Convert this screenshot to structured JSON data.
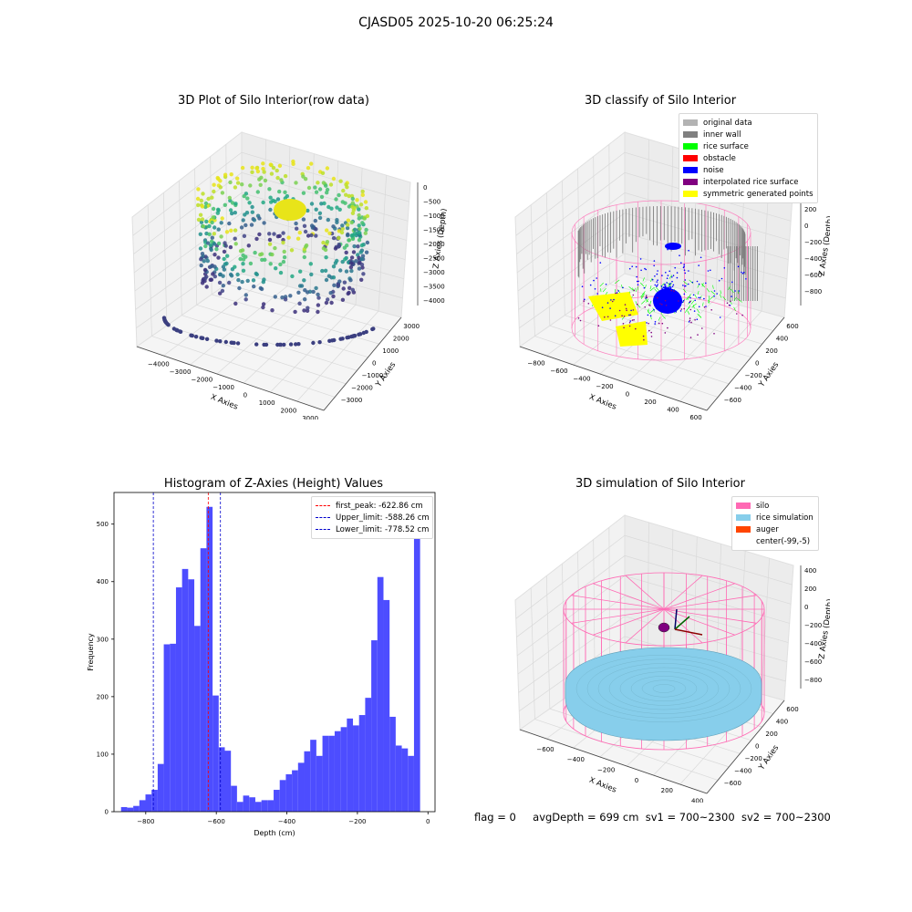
{
  "suptitle": "CJASD05 2025-10-20 06:25:24",
  "status": {
    "flag": "flag = 0",
    "avg_depth": "avgDepth = 699 cm",
    "sv1": "sv1 = 700~2300",
    "sv2": "sv2 = 700~2300"
  },
  "colors": {
    "original_data": "#b3b3b3",
    "inner_wall": "#808080",
    "rice_surface": "#00ff00",
    "obstacle": "#ff0000",
    "noise": "#0000ff",
    "interpolated": "#800080",
    "symmetric": "#ffff00",
    "silo": "#ff69b4",
    "rice_sim": "#87ceeb",
    "auger": "#ff4500",
    "hist_bar": "#4d4dff"
  },
  "panels": [
    {
      "title": "3D Plot of Silo Interior(row data)",
      "xlabel": "X Axies",
      "ylabel": "Y Axies",
      "zlabel": "Z Axies (Depth)",
      "xticks": [
        "−4000",
        "−3000",
        "−2000",
        "−1000",
        "0",
        "1000",
        "2000",
        "3000"
      ],
      "yticks": [
        "−3000",
        "−2000",
        "−1000",
        "0",
        "1000",
        "2000",
        "3000"
      ],
      "zticks": [
        "0",
        "−500",
        "−1000",
        "−1500",
        "−2000",
        "−2500",
        "−3000",
        "−3500",
        "−4000"
      ]
    },
    {
      "title": "3D classify of Silo Interior",
      "xlabel": "X Axies",
      "ylabel": "Y Axies",
      "zlabel": "Z Axies (Depth)",
      "xticks": [
        "−800",
        "−600",
        "−400",
        "−200",
        "0",
        "200",
        "400",
        "600"
      ],
      "yticks": [
        "−600",
        "−400",
        "−200",
        "0",
        "200",
        "400",
        "600"
      ],
      "zticks": [
        "200",
        "0",
        "−200",
        "−400",
        "−600",
        "−800"
      ],
      "legend": [
        "original data",
        "inner wall",
        "rice surface",
        "obstacle",
        "noise",
        "interpolated rice surface",
        "symmetric generated points"
      ]
    },
    {
      "title": "3D simulation of Silo Interior",
      "xlabel": "X Axies",
      "ylabel": "Y Axies",
      "zlabel": "Z Axies (Depth)",
      "xticks": [
        "−600",
        "−400",
        "−200",
        "0",
        "200",
        "400"
      ],
      "yticks": [
        "−600",
        "−400",
        "−200",
        "0",
        "200",
        "400",
        "600"
      ],
      "zticks": [
        "400",
        "200",
        "0",
        "−200",
        "−400",
        "−600",
        "−800"
      ],
      "legend": [
        "silo",
        "rice simulation",
        "auger",
        "center(-99,-5)"
      ]
    }
  ],
  "chart_data": {
    "type": "bar",
    "title": "Histogram of Z-Axies (Height) Values",
    "xlabel": "Depth (cm)",
    "ylabel": "Frequency",
    "xlim": [
      -890,
      20
    ],
    "ylim": [
      0,
      555
    ],
    "xticks": [
      -800,
      -600,
      -400,
      -200,
      0
    ],
    "xtick_labels": [
      "−800",
      "−600",
      "−400",
      "−200",
      "0"
    ],
    "yticks": [
      0,
      100,
      200,
      300,
      400,
      500
    ],
    "bin_width": 17.3,
    "bin_start": -870,
    "values": [
      8,
      7,
      10,
      20,
      30,
      38,
      83,
      291,
      292,
      390,
      422,
      404,
      323,
      458,
      530,
      202,
      112,
      106,
      45,
      17,
      28,
      25,
      17,
      20,
      20,
      38,
      55,
      65,
      72,
      85,
      105,
      125,
      97,
      132,
      132,
      140,
      147,
      162,
      150,
      168,
      198,
      298,
      408,
      368,
      165,
      115,
      110,
      97,
      520
    ],
    "vlines": [
      {
        "x": -622.86,
        "color": "#ff0000",
        "label": "first_peak: -622.86 cm"
      },
      {
        "x": -588.26,
        "color": "#0000cc",
        "label": "Upper_limit: -588.26 cm"
      },
      {
        "x": -778.52,
        "color": "#0000cc",
        "label": "Lower_limit: -778.52 cm"
      }
    ]
  }
}
